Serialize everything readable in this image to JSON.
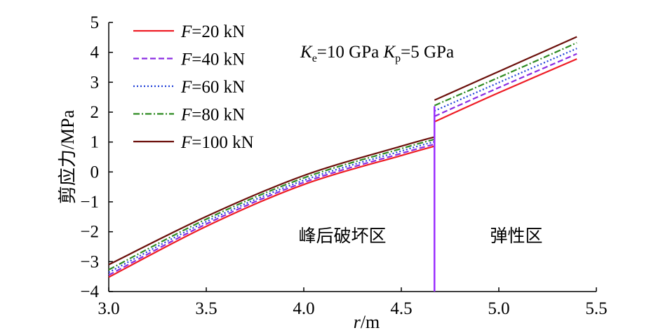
{
  "chart_data": {
    "type": "line",
    "xlabel": "r/m",
    "ylabel": "剪应力/MPa",
    "xlim": [
      3.0,
      5.5
    ],
    "ylim": [
      -4,
      5
    ],
    "xticks": [
      "3.0",
      "3.5",
      "4.0",
      "4.5",
      "5.0",
      "5.5"
    ],
    "yticks": [
      "−4",
      "−3",
      "−2",
      "−1",
      "0",
      "1",
      "2",
      "3",
      "4",
      "5"
    ],
    "annotation": {
      "ke_symbol": "K",
      "ke_sub": "e",
      "ke_value": "=10 GPa ",
      "kp_symbol": "K",
      "kp_sub": "p",
      "kp_value": "=5 GPa"
    },
    "regions": [
      {
        "label": "峰后破坏区"
      },
      {
        "label": "弹性区"
      }
    ],
    "boundary_r": 4.67,
    "series": [
      {
        "name": "=20 kN",
        "symbol": "F",
        "color": "#ee1c25",
        "dash": "",
        "x": [
          3.0,
          3.5,
          4.0,
          4.5,
          4.67,
          4.67,
          5.0,
          5.4
        ],
        "y": [
          -3.52,
          -1.82,
          -0.42,
          0.55,
          0.86,
          1.68,
          2.65,
          3.78
        ]
      },
      {
        "name": "=40 kN",
        "symbol": "F",
        "color": "#8a2be2",
        "dash": "8,4",
        "x": [
          3.0,
          3.5,
          4.0,
          4.5,
          4.67,
          4.67,
          5.0,
          5.4
        ],
        "y": [
          -3.45,
          -1.74,
          -0.35,
          0.62,
          0.93,
          1.86,
          2.82,
          3.95
        ]
      },
      {
        "name": "=60 kN",
        "symbol": "F",
        "color": "#1f3fd8",
        "dash": "2,3",
        "x": [
          3.0,
          3.5,
          4.0,
          4.5,
          4.67,
          4.67,
          5.0,
          5.4
        ],
        "y": [
          -3.36,
          -1.66,
          -0.28,
          0.7,
          1.01,
          2.04,
          2.99,
          4.13
        ]
      },
      {
        "name": "=80 kN",
        "symbol": "F",
        "color": "#2e8b22",
        "dash": "9,3,2,3",
        "x": [
          3.0,
          3.5,
          4.0,
          4.5,
          4.67,
          4.67,
          5.0,
          5.4
        ],
        "y": [
          -3.27,
          -1.58,
          -0.2,
          0.78,
          1.09,
          2.22,
          3.16,
          4.32
        ]
      },
      {
        "name": "=100 kN",
        "symbol": "F",
        "color": "#6b0f0a",
        "dash": "",
        "x": [
          3.0,
          3.5,
          4.0,
          4.5,
          4.67,
          4.67,
          5.0,
          5.4
        ],
        "y": [
          -3.1,
          -1.49,
          -0.12,
          0.86,
          1.17,
          2.4,
          3.36,
          4.52
        ]
      }
    ],
    "vertical_line": {
      "x": 4.67,
      "y": [
        -4,
        2.2
      ],
      "color": "#9b30ff"
    }
  }
}
